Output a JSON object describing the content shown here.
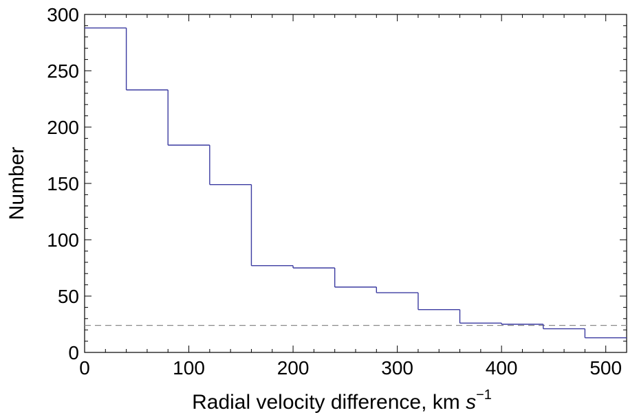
{
  "chart_data": {
    "type": "histogram",
    "title": "",
    "xlabel": "Radial velocity difference,  km ",
    "xlabel_unit_var": "s",
    "xlabel_unit_exp": "−1",
    "ylabel": "Number",
    "xlim": [
      0,
      520
    ],
    "ylim": [
      0,
      300
    ],
    "xticks": [
      0,
      100,
      200,
      300,
      400,
      500
    ],
    "yticks": [
      0,
      50,
      100,
      150,
      200,
      250,
      300
    ],
    "xtick_labels": [
      "0",
      "100",
      "200",
      "300",
      "400",
      "500"
    ],
    "ytick_labels": [
      "0",
      "50",
      "100",
      "150",
      "200",
      "250",
      "300"
    ],
    "grid": false,
    "bin_edges": [
      0,
      40,
      80,
      120,
      160,
      200,
      240,
      280,
      320,
      360,
      400,
      440,
      480,
      520
    ],
    "series": [
      {
        "values": [
          288,
          233,
          184,
          149,
          77,
          75,
          58,
          53,
          38,
          26,
          25,
          21,
          13
        ],
        "color": "#3a3aa0",
        "style": "step"
      }
    ],
    "reference_line": {
      "y": 24,
      "style": "dashed",
      "color": "#888888"
    }
  }
}
